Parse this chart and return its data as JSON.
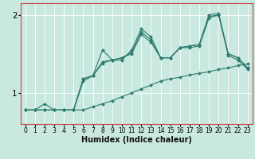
{
  "xlabel": "Humidex (Indice chaleur)",
  "bg_color": "#c8e8e0",
  "grid_color": "#ffffff",
  "line_color": "#2d7a6e",
  "spine_color": "#cc4444",
  "xlim": [
    -0.5,
    23.5
  ],
  "ylim": [
    0.6,
    2.15
  ],
  "yticks": [
    1,
    2
  ],
  "xticks": [
    0,
    1,
    2,
    3,
    4,
    5,
    6,
    7,
    8,
    9,
    10,
    11,
    12,
    13,
    14,
    15,
    16,
    17,
    18,
    19,
    20,
    21,
    22,
    23
  ],
  "line1_x": [
    0,
    1,
    2,
    3,
    4,
    5,
    6,
    7,
    8,
    9,
    10,
    11,
    12,
    13,
    14,
    15,
    16,
    17,
    18,
    19,
    20,
    21,
    22,
    23
  ],
  "line1_y": [
    0.78,
    0.78,
    0.78,
    0.78,
    0.78,
    0.78,
    0.78,
    0.82,
    0.86,
    0.9,
    0.95,
    1.0,
    1.05,
    1.1,
    1.15,
    1.18,
    1.2,
    1.23,
    1.25,
    1.27,
    1.3,
    1.32,
    1.35,
    1.37
  ],
  "line2_x": [
    0,
    1,
    2,
    3,
    4,
    5,
    6,
    7,
    8,
    9,
    10,
    11,
    12,
    13,
    14,
    15,
    16,
    17,
    18,
    19,
    20,
    21,
    22,
    23
  ],
  "line2_y": [
    0.78,
    0.78,
    0.86,
    0.78,
    0.78,
    0.78,
    1.18,
    1.22,
    1.55,
    1.42,
    1.42,
    1.55,
    1.82,
    1.72,
    1.45,
    1.45,
    1.58,
    1.6,
    1.62,
    2.0,
    2.02,
    1.5,
    1.45,
    1.32
  ],
  "line3_x": [
    0,
    1,
    2,
    3,
    4,
    5,
    6,
    7,
    8,
    9,
    10,
    11,
    12,
    13,
    14,
    15,
    16,
    17,
    18,
    19,
    20,
    21,
    22,
    23
  ],
  "line3_y": [
    0.78,
    0.78,
    0.78,
    0.78,
    0.78,
    0.78,
    1.18,
    1.22,
    1.4,
    1.42,
    1.45,
    1.52,
    1.78,
    1.68,
    1.45,
    1.45,
    1.58,
    1.6,
    1.62,
    1.98,
    2.0,
    1.5,
    1.45,
    1.32
  ],
  "line4_x": [
    0,
    1,
    2,
    3,
    4,
    5,
    6,
    7,
    8,
    9,
    10,
    11,
    12,
    13,
    14,
    15,
    16,
    17,
    18,
    19,
    20,
    21,
    22,
    23
  ],
  "line4_y": [
    0.78,
    0.78,
    0.78,
    0.78,
    0.78,
    0.78,
    1.15,
    1.22,
    1.38,
    1.42,
    1.45,
    1.5,
    1.75,
    1.65,
    1.45,
    1.45,
    1.58,
    1.58,
    1.6,
    1.96,
    2.0,
    1.48,
    1.42,
    1.3
  ]
}
